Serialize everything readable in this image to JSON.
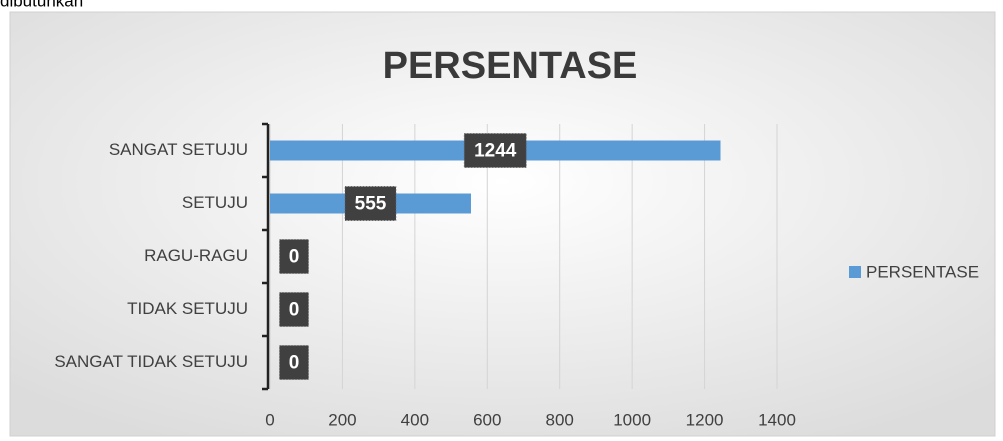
{
  "page_text": "dibutuhkan",
  "chart_data": {
    "type": "bar",
    "orientation": "horizontal",
    "title": "PERSENTASE",
    "categories": [
      "SANGAT SETUJU",
      "SETUJU",
      "RAGU-RAGU",
      "TIDAK SETUJU",
      "SANGAT TIDAK SETUJU"
    ],
    "series": [
      {
        "name": "PERSENTASE",
        "color": "#5b9bd5",
        "values": [
          1244,
          555,
          0,
          0,
          0
        ]
      }
    ],
    "xlim": [
      0,
      1400
    ],
    "xticks": [
      0,
      200,
      400,
      600,
      800,
      1000,
      1200,
      1400
    ],
    "grid": true,
    "legend": "right",
    "data_labels": true
  }
}
